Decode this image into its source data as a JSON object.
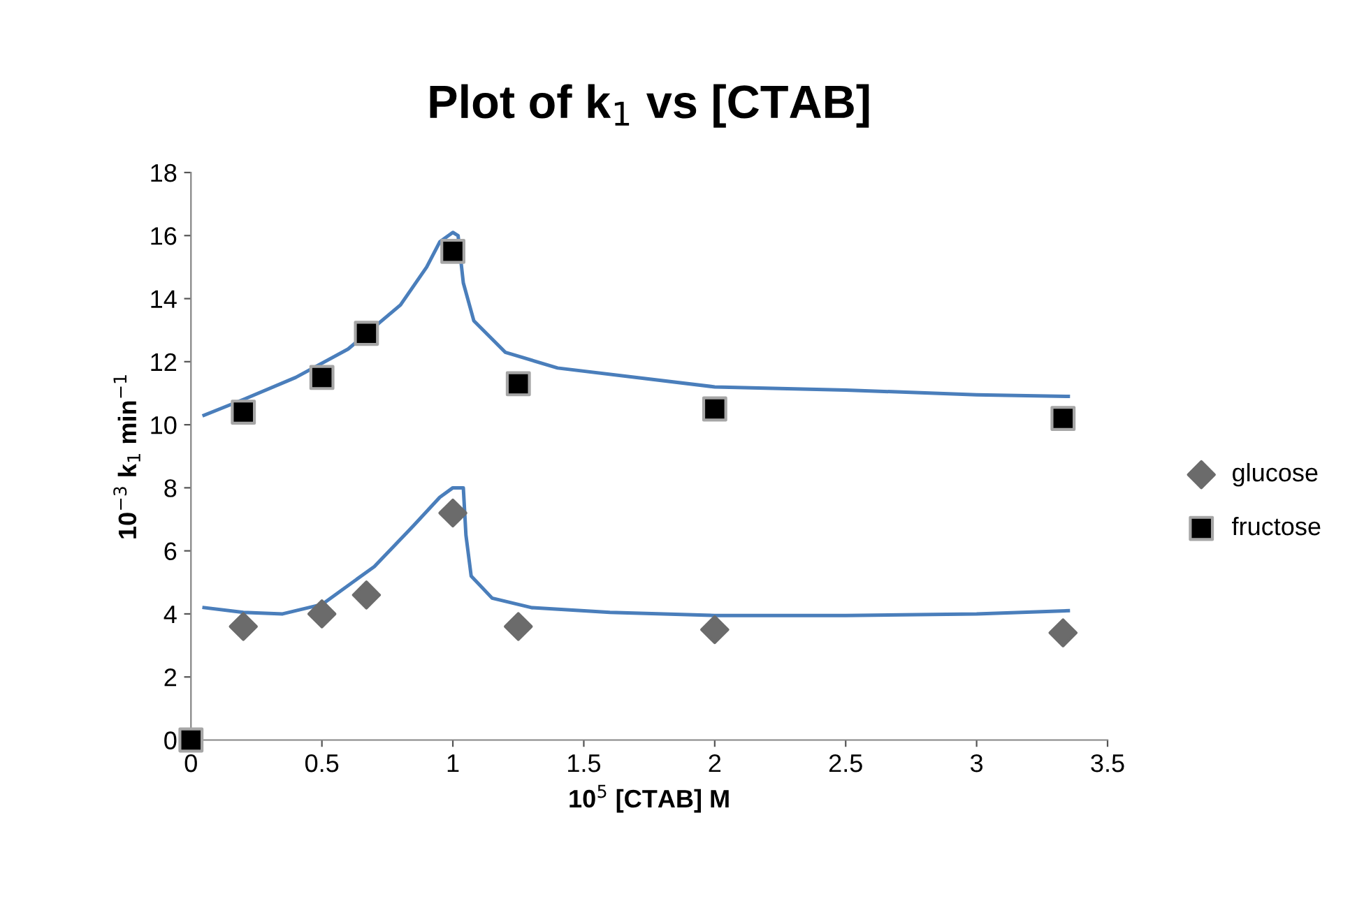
{
  "chart_data": {
    "type": "scatter",
    "title": "Plot of k$_{1}$ vs [CTAB]",
    "xlabel": "10$^{5}$ [CTAB] M",
    "ylabel": "10$^{−3}$ k$_{1}$ min$^{−1}$",
    "xlim": [
      0,
      3.5
    ],
    "xticks": [
      0,
      0.5,
      1,
      1.5,
      2,
      2.5,
      3,
      3.5
    ],
    "ylim": [
      0,
      18
    ],
    "yticks": [
      0,
      2,
      4,
      6,
      8,
      10,
      12,
      14,
      16,
      18
    ],
    "grid": false,
    "legend": "right",
    "series": [
      {
        "name": "glucose",
        "marker": "diamond",
        "color": "#6b6b6b",
        "x": [
          0.2,
          0.5,
          0.67,
          1,
          1.25,
          2,
          3.33
        ],
        "values": [
          3.6,
          4.0,
          4.6,
          7.2,
          3.6,
          3.5,
          3.4
        ]
      },
      {
        "name": "fructose",
        "marker": "square",
        "color": "#000000",
        "x": [
          0,
          0.2,
          0.5,
          0.67,
          1,
          1.25,
          2,
          3.33
        ],
        "values": [
          0,
          10.4,
          11.5,
          12.9,
          15.5,
          11.3,
          10.5,
          10.2
        ]
      },
      {
        "type": "line",
        "marker": "none",
        "color": "#4a7ebb",
        "x": [
          0.05,
          0.2,
          0.4,
          0.6,
          0.8,
          0.9,
          0.95,
          1.0,
          1.02,
          1.04,
          1.08,
          1.2,
          1.4,
          2,
          2.5,
          3.0,
          3.35
        ],
        "values": [
          10.3,
          10.8,
          11.5,
          12.4,
          13.8,
          15.0,
          15.8,
          16.1,
          16.0,
          14.5,
          13.3,
          12.3,
          11.8,
          11.2,
          11.1,
          10.95,
          10.9
        ]
      },
      {
        "type": "line",
        "marker": "none",
        "color": "#4a7ebb",
        "x": [
          0.05,
          0.2,
          0.35,
          0.5,
          0.7,
          0.85,
          0.95,
          1.0,
          1.04,
          1.05,
          1.07,
          1.15,
          1.3,
          1.6,
          2.0,
          2.5,
          3.0,
          3.35
        ],
        "values": [
          4.2,
          4.05,
          4.0,
          4.3,
          5.5,
          6.8,
          7.7,
          8.0,
          8.0,
          6.5,
          5.2,
          4.5,
          4.2,
          4.05,
          3.95,
          3.95,
          4.0,
          4.1
        ]
      }
    ]
  }
}
